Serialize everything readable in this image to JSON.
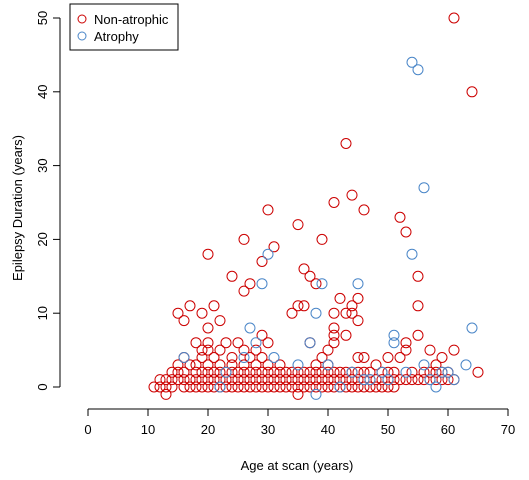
{
  "chart_data": {
    "type": "scatter",
    "title": "",
    "xlabel": "Age at scan (years)",
    "ylabel": "Epilepsy Duration (years)",
    "xlim": [
      -5,
      72
    ],
    "ylim": [
      -3,
      52
    ],
    "x_ticks": [
      0,
      10,
      20,
      30,
      40,
      50,
      60,
      70
    ],
    "y_ticks": [
      0,
      10,
      20,
      30,
      40,
      50
    ],
    "grid": false,
    "legend_placement": "top-left",
    "colors": {
      "Non-atrophic": "#cc0000",
      "Atrophy": "#4a86c8"
    },
    "series": [
      {
        "name": "Non-atrophic",
        "color": "#cc0000",
        "points": [
          [
            11,
            0
          ],
          [
            12,
            1
          ],
          [
            12,
            0
          ],
          [
            13,
            1
          ],
          [
            13,
            0
          ],
          [
            13,
            -1
          ],
          [
            14,
            1
          ],
          [
            14,
            2
          ],
          [
            14,
            0
          ],
          [
            15,
            1
          ],
          [
            15,
            3
          ],
          [
            15,
            2
          ],
          [
            15,
            10
          ],
          [
            16,
            0
          ],
          [
            16,
            1
          ],
          [
            16,
            2
          ],
          [
            16,
            4
          ],
          [
            16,
            9
          ],
          [
            17,
            0
          ],
          [
            17,
            1
          ],
          [
            17,
            3
          ],
          [
            17,
            11
          ],
          [
            18,
            0
          ],
          [
            18,
            1
          ],
          [
            18,
            2
          ],
          [
            18,
            6
          ],
          [
            18,
            3
          ],
          [
            19,
            0
          ],
          [
            19,
            1
          ],
          [
            19,
            2
          ],
          [
            19,
            4
          ],
          [
            19,
            10
          ],
          [
            19,
            5
          ],
          [
            20,
            0
          ],
          [
            20,
            1
          ],
          [
            20,
            2
          ],
          [
            20,
            3
          ],
          [
            20,
            5
          ],
          [
            20,
            6
          ],
          [
            20,
            8
          ],
          [
            20,
            18
          ],
          [
            21,
            0
          ],
          [
            21,
            1
          ],
          [
            21,
            2
          ],
          [
            21,
            4
          ],
          [
            21,
            11
          ],
          [
            22,
            0
          ],
          [
            22,
            1
          ],
          [
            22,
            2
          ],
          [
            22,
            3
          ],
          [
            22,
            9
          ],
          [
            22,
            5
          ],
          [
            23,
            0
          ],
          [
            23,
            1
          ],
          [
            23,
            2
          ],
          [
            23,
            6
          ],
          [
            24,
            0
          ],
          [
            24,
            1
          ],
          [
            24,
            2
          ],
          [
            24,
            3
          ],
          [
            24,
            4
          ],
          [
            24,
            15
          ],
          [
            25,
            0
          ],
          [
            25,
            1
          ],
          [
            25,
            2
          ],
          [
            25,
            6
          ],
          [
            26,
            0
          ],
          [
            26,
            1
          ],
          [
            26,
            2
          ],
          [
            26,
            3
          ],
          [
            26,
            5
          ],
          [
            26,
            13
          ],
          [
            26,
            20
          ],
          [
            27,
            0
          ],
          [
            27,
            1
          ],
          [
            27,
            2
          ],
          [
            27,
            4
          ],
          [
            27,
            14
          ],
          [
            28,
            0
          ],
          [
            28,
            1
          ],
          [
            28,
            2
          ],
          [
            28,
            3
          ],
          [
            28,
            5
          ],
          [
            29,
            0
          ],
          [
            29,
            1
          ],
          [
            29,
            2
          ],
          [
            29,
            4
          ],
          [
            29,
            7
          ],
          [
            29,
            17
          ],
          [
            30,
            0
          ],
          [
            30,
            1
          ],
          [
            30,
            2
          ],
          [
            30,
            3
          ],
          [
            30,
            6
          ],
          [
            30,
            24
          ],
          [
            31,
            0
          ],
          [
            31,
            1
          ],
          [
            31,
            2
          ],
          [
            31,
            19
          ],
          [
            32,
            0
          ],
          [
            32,
            1
          ],
          [
            32,
            2
          ],
          [
            32,
            3
          ],
          [
            33,
            0
          ],
          [
            33,
            1
          ],
          [
            33,
            2
          ],
          [
            34,
            0
          ],
          [
            34,
            1
          ],
          [
            34,
            2
          ],
          [
            34,
            10
          ],
          [
            35,
            0
          ],
          [
            35,
            1
          ],
          [
            35,
            2
          ],
          [
            35,
            -1
          ],
          [
            35,
            11
          ],
          [
            35,
            22
          ],
          [
            36,
            0
          ],
          [
            36,
            1
          ],
          [
            36,
            2
          ],
          [
            36,
            11
          ],
          [
            36,
            16
          ],
          [
            37,
            0
          ],
          [
            37,
            1
          ],
          [
            37,
            2
          ],
          [
            37,
            6
          ],
          [
            37,
            15
          ],
          [
            38,
            0
          ],
          [
            38,
            1
          ],
          [
            38,
            2
          ],
          [
            38,
            3
          ],
          [
            38,
            14
          ],
          [
            39,
            0
          ],
          [
            39,
            1
          ],
          [
            39,
            2
          ],
          [
            39,
            4
          ],
          [
            39,
            20
          ],
          [
            40,
            0
          ],
          [
            40,
            1
          ],
          [
            40,
            2
          ],
          [
            40,
            3
          ],
          [
            40,
            5
          ],
          [
            41,
            0
          ],
          [
            41,
            1
          ],
          [
            41,
            2
          ],
          [
            41,
            6
          ],
          [
            41,
            7
          ],
          [
            41,
            8
          ],
          [
            41,
            10
          ],
          [
            41,
            25
          ],
          [
            42,
            0
          ],
          [
            42,
            1
          ],
          [
            42,
            2
          ],
          [
            42,
            12
          ],
          [
            43,
            0
          ],
          [
            43,
            1
          ],
          [
            43,
            2
          ],
          [
            43,
            10
          ],
          [
            43,
            33
          ],
          [
            43,
            7
          ],
          [
            44,
            0
          ],
          [
            44,
            1
          ],
          [
            44,
            2
          ],
          [
            44,
            10
          ],
          [
            44,
            26
          ],
          [
            44,
            11
          ],
          [
            45,
            0
          ],
          [
            45,
            1
          ],
          [
            45,
            2
          ],
          [
            45,
            4
          ],
          [
            45,
            9
          ],
          [
            45,
            12
          ],
          [
            46,
            0
          ],
          [
            46,
            1
          ],
          [
            46,
            2
          ],
          [
            46,
            4
          ],
          [
            46,
            24
          ],
          [
            47,
            0
          ],
          [
            47,
            1
          ],
          [
            47,
            2
          ],
          [
            48,
            0
          ],
          [
            48,
            1
          ],
          [
            48,
            3
          ],
          [
            49,
            0
          ],
          [
            49,
            1
          ],
          [
            49,
            2
          ],
          [
            50,
            0
          ],
          [
            50,
            1
          ],
          [
            50,
            2
          ],
          [
            50,
            4
          ],
          [
            51,
            0
          ],
          [
            51,
            1
          ],
          [
            51,
            2
          ],
          [
            52,
            1
          ],
          [
            52,
            4
          ],
          [
            52,
            23
          ],
          [
            53,
            1
          ],
          [
            53,
            5
          ],
          [
            53,
            6
          ],
          [
            53,
            21
          ],
          [
            54,
            1
          ],
          [
            54,
            2
          ],
          [
            55,
            1
          ],
          [
            55,
            7
          ],
          [
            55,
            11
          ],
          [
            55,
            15
          ],
          [
            56,
            1
          ],
          [
            56,
            2
          ],
          [
            57,
            1
          ],
          [
            57,
            2
          ],
          [
            57,
            5
          ],
          [
            58,
            1
          ],
          [
            58,
            2
          ],
          [
            58,
            3
          ],
          [
            59,
            1
          ],
          [
            59,
            2
          ],
          [
            59,
            4
          ],
          [
            60,
            1
          ],
          [
            60,
            2
          ],
          [
            61,
            1
          ],
          [
            61,
            5
          ],
          [
            61,
            50
          ],
          [
            64,
            40
          ],
          [
            65,
            2
          ]
        ]
      },
      {
        "name": "Atrophy",
        "color": "#4a86c8",
        "points": [
          [
            16,
            4
          ],
          [
            22,
            0
          ],
          [
            23,
            2
          ],
          [
            26,
            4
          ],
          [
            27,
            8
          ],
          [
            28,
            6
          ],
          [
            29,
            14
          ],
          [
            30,
            18
          ],
          [
            31,
            4
          ],
          [
            35,
            3
          ],
          [
            37,
            6
          ],
          [
            38,
            -1
          ],
          [
            38,
            10
          ],
          [
            39,
            14
          ],
          [
            40,
            3
          ],
          [
            42,
            0
          ],
          [
            44,
            2
          ],
          [
            45,
            14
          ],
          [
            46,
            1
          ],
          [
            47,
            1
          ],
          [
            49,
            2
          ],
          [
            50,
            1
          ],
          [
            51,
            7
          ],
          [
            51,
            6
          ],
          [
            53,
            2
          ],
          [
            54,
            44
          ],
          [
            55,
            43
          ],
          [
            54,
            18
          ],
          [
            56,
            27
          ],
          [
            56,
            3
          ],
          [
            57,
            1
          ],
          [
            58,
            0
          ],
          [
            59,
            2
          ],
          [
            60,
            2
          ],
          [
            61,
            1
          ],
          [
            63,
            3
          ],
          [
            64,
            8
          ]
        ]
      }
    ]
  }
}
